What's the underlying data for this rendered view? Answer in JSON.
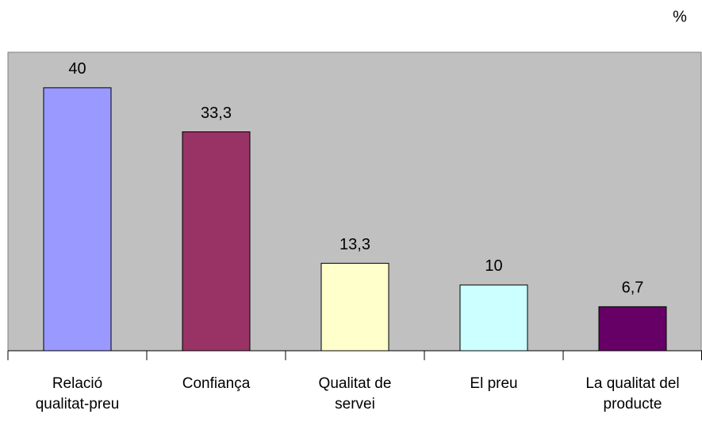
{
  "chart_data": {
    "type": "bar",
    "y_label": "%",
    "categories": [
      "Relació\nqualitat-preu",
      "Confiança",
      "Qualitat de\nservei",
      "El preu",
      "La qualitat del\nproducte"
    ],
    "values": [
      40,
      33.3,
      13.3,
      10,
      6.7
    ],
    "value_labels": [
      "40",
      "33,3",
      "13,3",
      "10",
      "6,7"
    ],
    "colors": [
      "#9999ff",
      "#993366",
      "#ffffcc",
      "#ccffff",
      "#660066"
    ],
    "ylim": [
      0,
      45.4
    ]
  }
}
